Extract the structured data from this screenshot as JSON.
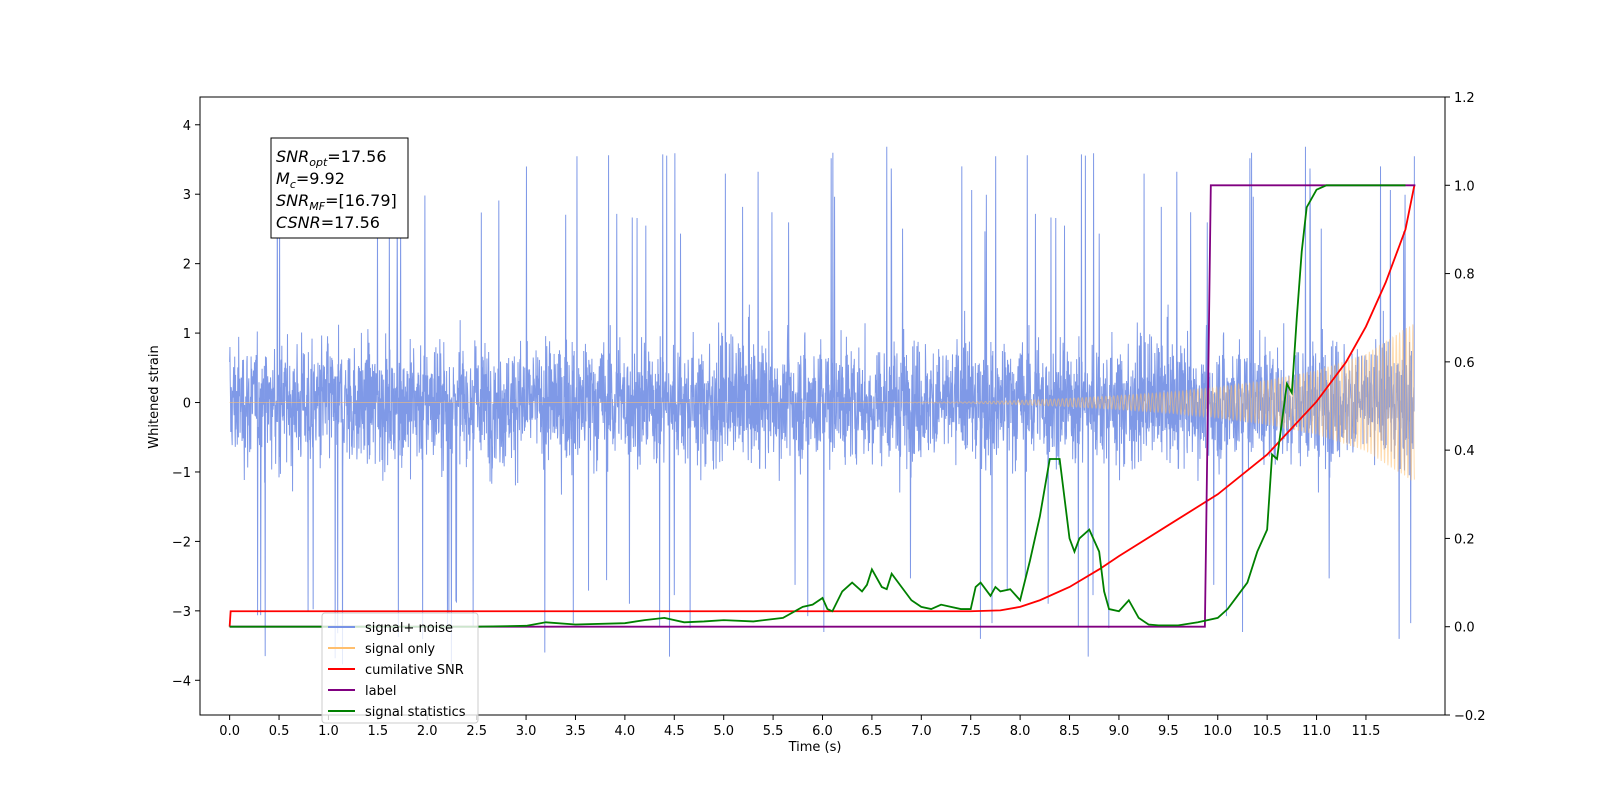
{
  "chart_data": {
    "type": "line",
    "xlabel": "Time (s)",
    "ylabel": "Whitened strain",
    "x_ticks": [
      "0.0",
      "0.5",
      "1.0",
      "1.5",
      "2.0",
      "2.5",
      "3.0",
      "3.5",
      "4.0",
      "4.5",
      "5.0",
      "5.5",
      "6.0",
      "6.5",
      "7.0",
      "7.5",
      "8.0",
      "8.5",
      "9.0",
      "9.5",
      "10.0",
      "10.5",
      "11.0",
      "11.5"
    ],
    "y_ticks": [
      "4",
      "3",
      "2",
      "1",
      "0",
      "−1",
      "−2",
      "−3",
      "−4"
    ],
    "y2_ticks": [
      "1.2",
      "1.0",
      "0.8",
      "0.6",
      "0.4",
      "0.2",
      "0.0",
      "−0.2"
    ],
    "xlim": [
      -0.3,
      12.3
    ],
    "ylim": [
      -4.5,
      4.4
    ],
    "y2lim": [
      -0.2,
      1.2
    ],
    "annotation": {
      "lines": [
        {
          "base": "SNR",
          "sub": "opt",
          "rest": "=17.56"
        },
        {
          "base": "M",
          "sub": "c",
          "rest": "=9.92"
        },
        {
          "base": "SNR",
          "sub": "MF",
          "rest": "=[16.79]"
        },
        {
          "base": "CSNR",
          "sub": "",
          "rest": "=17.56"
        }
      ]
    },
    "legend": {
      "placement": "bottom-left",
      "items": [
        {
          "label": "signal+ noise",
          "color": "#7893e6"
        },
        {
          "label": "signal only",
          "color": "#ffbf6e"
        },
        {
          "label": "cumilative SNR",
          "color": "#ff0000"
        },
        {
          "label": "label",
          "color": "#800080"
        },
        {
          "label": "signal statistics",
          "color": "#008000"
        }
      ]
    },
    "series": [
      {
        "name": "signal+ noise",
        "axis": "left",
        "color": "#7893e6",
        "description_values": {
          "t_start": 0.0,
          "t_end": 11.99,
          "typical_envelope": [
            -1.8,
            2.0
          ],
          "max": 3.97,
          "min": -3.85
        }
      },
      {
        "name": "signal only",
        "axis": "left",
        "color": "#ffbf6e",
        "envelope_t": [
          0.0,
          6.0,
          7.0,
          7.5,
          8.0,
          8.5,
          9.0,
          9.5,
          10.0,
          10.5,
          11.0,
          11.5,
          11.99
        ],
        "envelope_amp": [
          0.0,
          0.0,
          0.005,
          0.01,
          0.03,
          0.06,
          0.1,
          0.15,
          0.22,
          0.32,
          0.46,
          0.7,
          1.15
        ]
      },
      {
        "name": "cumilative SNR",
        "axis": "right",
        "color": "#ff0000",
        "x": [
          0.0,
          0.01,
          1.0,
          2.0,
          3.0,
          4.0,
          5.0,
          6.0,
          7.0,
          7.5,
          7.8,
          8.0,
          8.2,
          8.5,
          8.8,
          9.0,
          9.5,
          10.0,
          10.5,
          11.0,
          11.3,
          11.5,
          11.7,
          11.9,
          11.99
        ],
        "y": [
          0.0,
          0.035,
          0.035,
          0.035,
          0.035,
          0.035,
          0.035,
          0.035,
          0.035,
          0.035,
          0.037,
          0.045,
          0.06,
          0.09,
          0.13,
          0.16,
          0.23,
          0.3,
          0.39,
          0.51,
          0.6,
          0.68,
          0.78,
          0.9,
          1.0
        ]
      },
      {
        "name": "label",
        "axis": "right",
        "color": "#800080",
        "x": [
          0.0,
          9.87,
          9.93,
          12.0
        ],
        "y": [
          0.0,
          0.0,
          1.0,
          1.0
        ]
      },
      {
        "name": "signal statistics",
        "axis": "right",
        "color": "#008000",
        "x": [
          0.0,
          1.0,
          2.0,
          2.5,
          3.0,
          3.2,
          3.5,
          4.0,
          4.2,
          4.4,
          4.6,
          4.8,
          5.0,
          5.3,
          5.6,
          5.8,
          5.9,
          6.0,
          6.05,
          6.1,
          6.2,
          6.3,
          6.4,
          6.45,
          6.5,
          6.6,
          6.65,
          6.7,
          6.8,
          6.9,
          7.0,
          7.1,
          7.2,
          7.3,
          7.4,
          7.5,
          7.55,
          7.6,
          7.7,
          7.75,
          7.8,
          7.9,
          8.0,
          8.1,
          8.2,
          8.3,
          8.4,
          8.5,
          8.55,
          8.6,
          8.7,
          8.8,
          8.85,
          8.9,
          9.0,
          9.1,
          9.2,
          9.3,
          9.4,
          9.6,
          9.8,
          10.0,
          10.1,
          10.2,
          10.3,
          10.4,
          10.5,
          10.55,
          10.6,
          10.7,
          10.75,
          10.8,
          10.85,
          10.9,
          11.0,
          11.1,
          11.3,
          11.6,
          11.9
        ],
        "y": [
          0.0,
          0.0,
          0.0,
          0.0,
          0.002,
          0.01,
          0.005,
          0.008,
          0.015,
          0.02,
          0.01,
          0.012,
          0.015,
          0.012,
          0.02,
          0.045,
          0.05,
          0.065,
          0.04,
          0.035,
          0.08,
          0.1,
          0.08,
          0.095,
          0.13,
          0.09,
          0.085,
          0.12,
          0.09,
          0.06,
          0.045,
          0.04,
          0.05,
          0.045,
          0.04,
          0.04,
          0.09,
          0.1,
          0.07,
          0.09,
          0.08,
          0.085,
          0.06,
          0.15,
          0.25,
          0.38,
          0.38,
          0.2,
          0.17,
          0.2,
          0.22,
          0.17,
          0.08,
          0.04,
          0.035,
          0.06,
          0.02,
          0.005,
          0.003,
          0.003,
          0.01,
          0.02,
          0.04,
          0.07,
          0.1,
          0.17,
          0.22,
          0.39,
          0.38,
          0.55,
          0.53,
          0.7,
          0.85,
          0.95,
          0.99,
          1.0,
          1.0,
          1.0,
          1.0
        ]
      }
    ]
  }
}
